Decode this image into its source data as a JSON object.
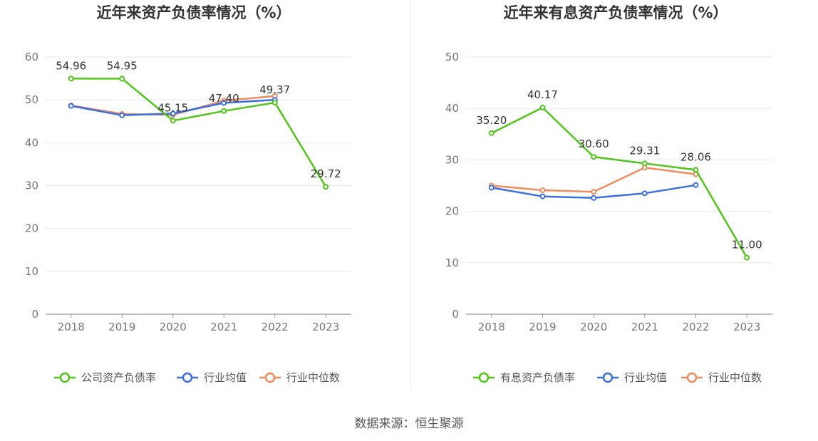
{
  "chart_data": [
    {
      "type": "line",
      "title": "近年来资产负债率情况（%）",
      "x": [
        "2018",
        "2019",
        "2020",
        "2021",
        "2022",
        "2023"
      ],
      "ylim": [
        0,
        60
      ],
      "yticks": [
        0,
        10,
        20,
        30,
        40,
        50,
        60
      ],
      "grid": true,
      "legend_position": "bottom",
      "series": [
        {
          "name": "公司资产负债率",
          "values": [
            54.96,
            54.95,
            45.15,
            47.4,
            49.37,
            29.72
          ],
          "color": "#52c41a",
          "labels": [
            "54.96",
            "54.95",
            "45.15",
            "47.40",
            "49.37",
            "29.72"
          ]
        },
        {
          "name": "行业均值",
          "values": [
            48.6,
            46.4,
            46.8,
            49.3,
            50.0,
            null
          ],
          "color": "#3b6fe0"
        },
        {
          "name": "行业中位数",
          "values": [
            48.7,
            46.7,
            46.5,
            49.8,
            50.9,
            null
          ],
          "color": "#f08b5f"
        }
      ]
    },
    {
      "type": "line",
      "title": "近年来有息资产负债率情况（%）",
      "x": [
        "2018",
        "2019",
        "2020",
        "2021",
        "2022",
        "2023"
      ],
      "ylim": [
        0,
        50
      ],
      "yticks": [
        0,
        10,
        20,
        30,
        40,
        50
      ],
      "grid": true,
      "legend_position": "bottom",
      "series": [
        {
          "name": "有息资产负债率",
          "values": [
            35.2,
            40.17,
            30.6,
            29.31,
            28.06,
            11.0
          ],
          "color": "#52c41a",
          "labels": [
            "35.20",
            "40.17",
            "30.60",
            "29.31",
            "28.06",
            "11.00"
          ]
        },
        {
          "name": "行业均值",
          "values": [
            24.6,
            22.9,
            22.6,
            23.5,
            25.1,
            null
          ],
          "color": "#3b6fe0"
        },
        {
          "name": "行业中位数",
          "values": [
            25.0,
            24.1,
            23.8,
            28.5,
            27.2,
            null
          ],
          "color": "#f08b5f"
        }
      ]
    }
  ],
  "footer": {
    "source": "数据来源：恒生聚源"
  }
}
